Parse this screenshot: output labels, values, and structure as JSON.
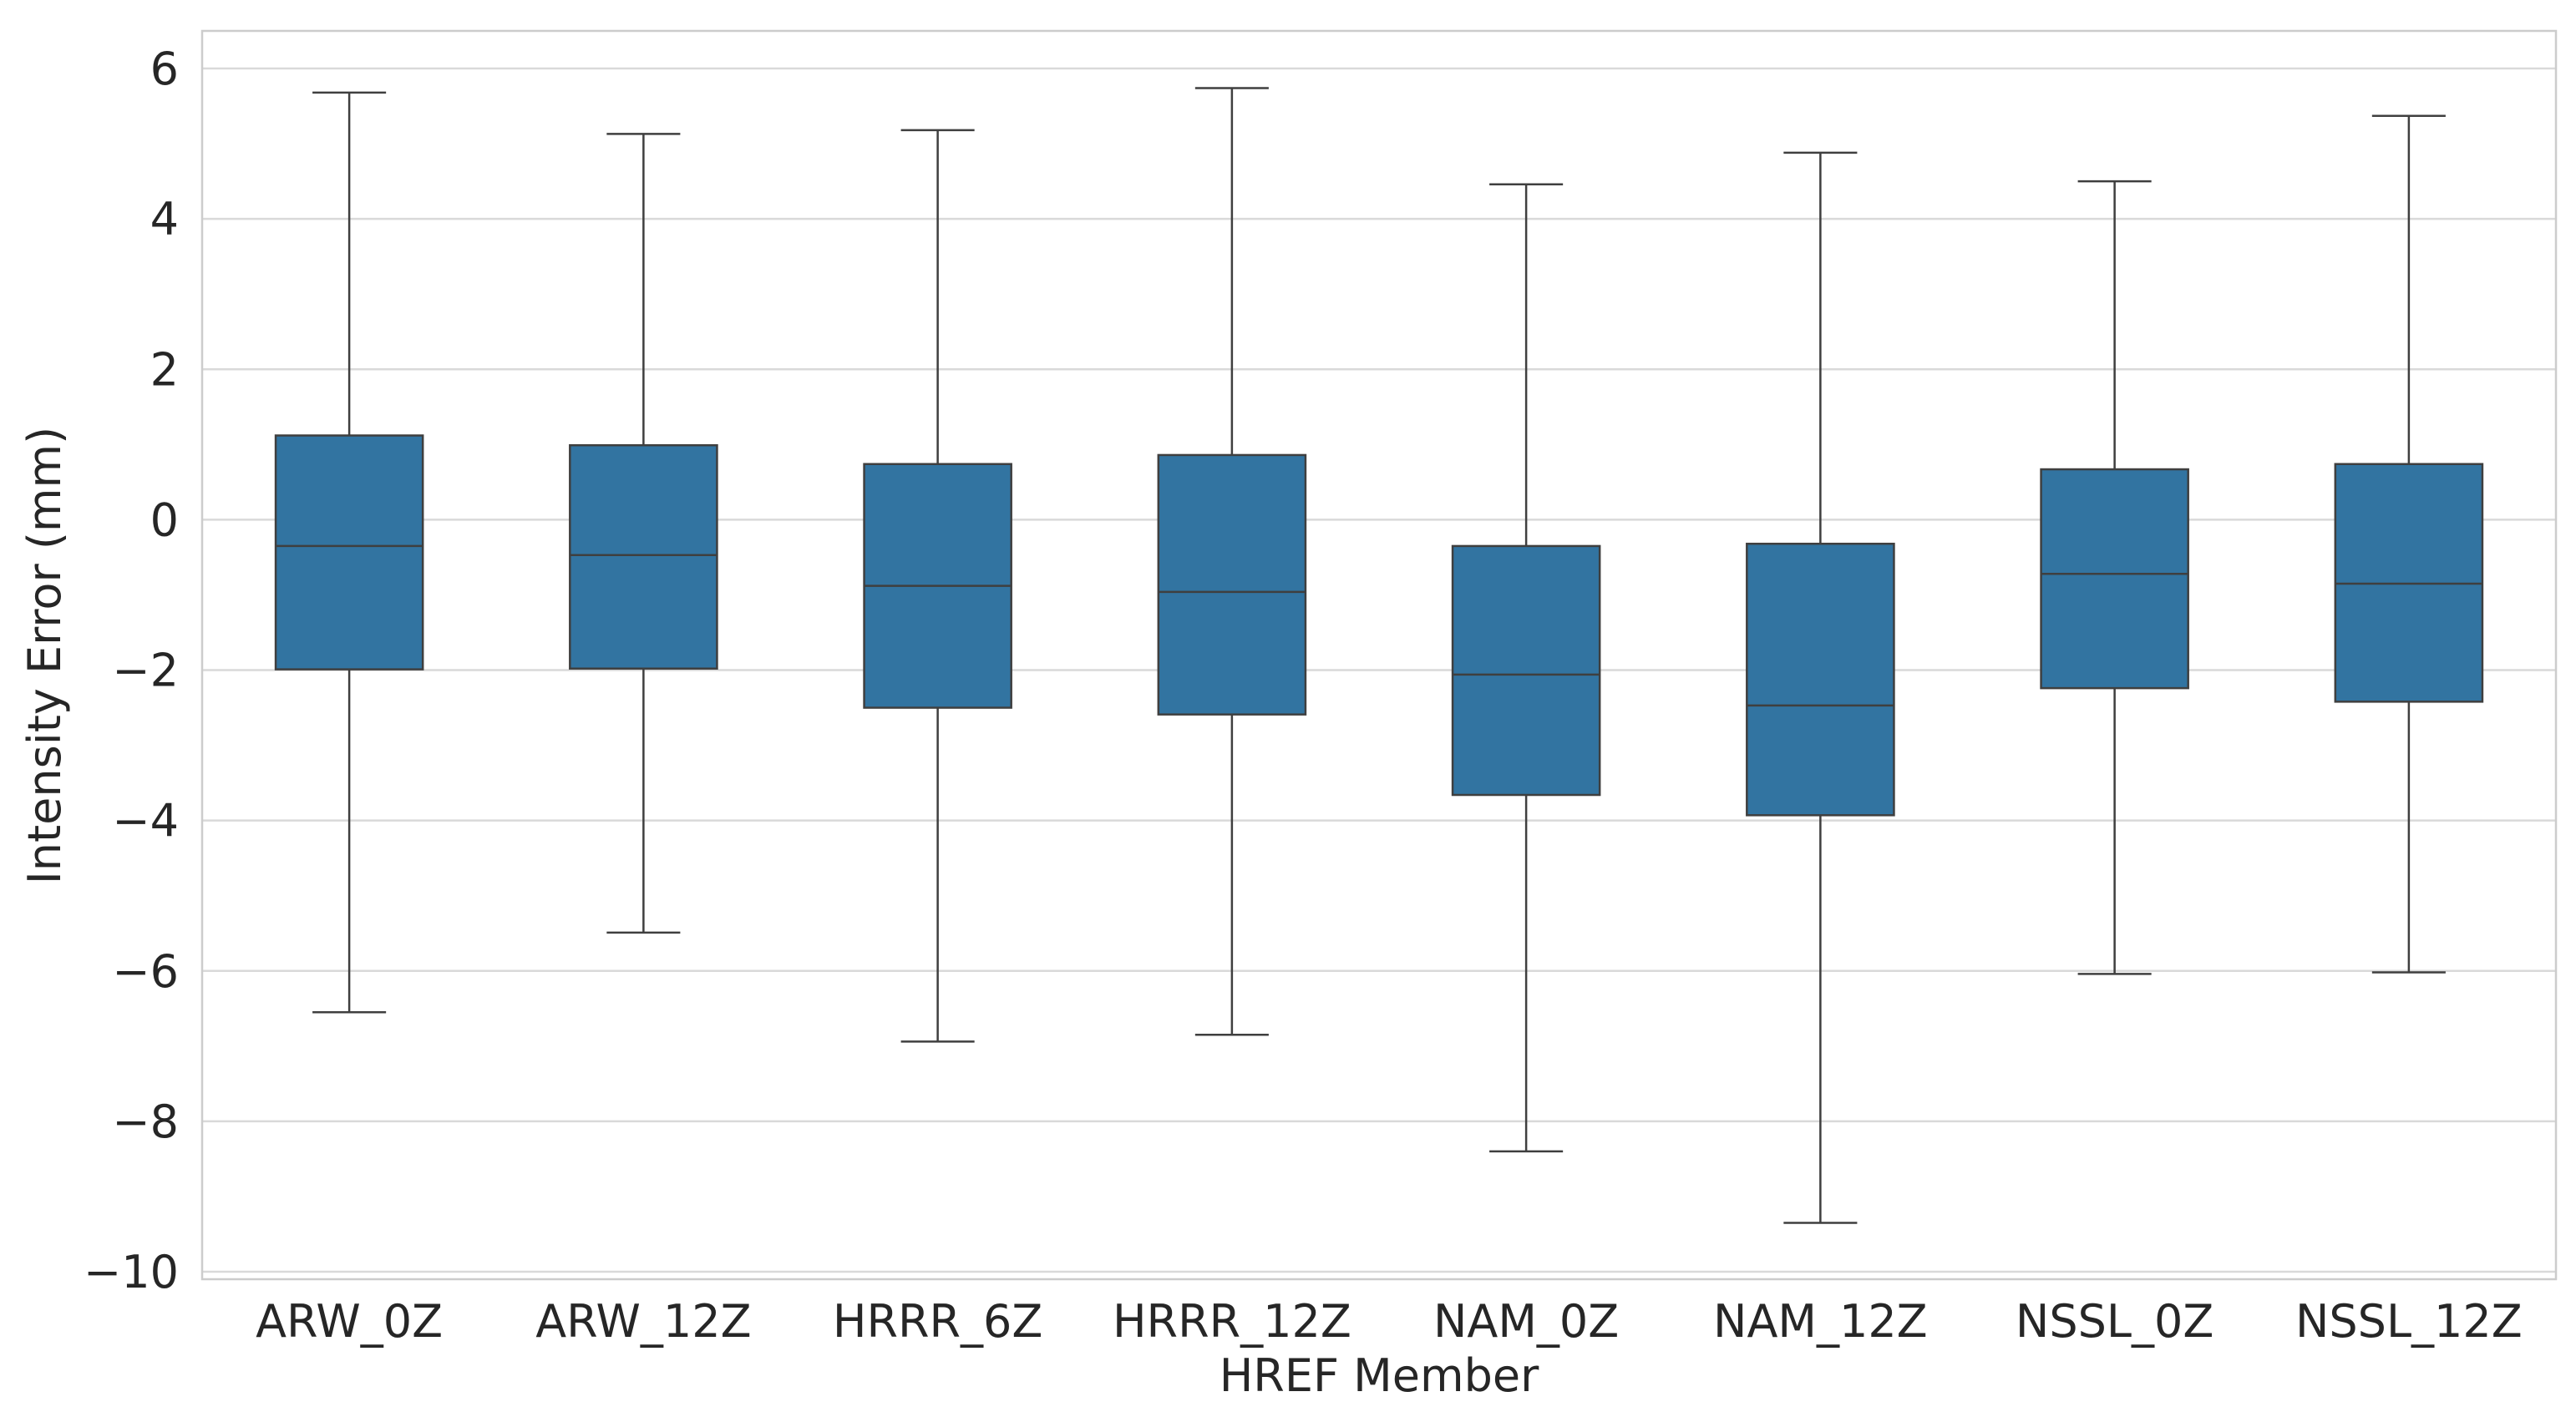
{
  "chart_data": {
    "type": "box",
    "title": "",
    "xlabel": "HREF Member",
    "ylabel": "Intensity Error (mm)",
    "ylim": [
      -10.1,
      6.5
    ],
    "yticks": [
      6,
      4,
      2,
      0,
      -2,
      -4,
      -6,
      -8,
      -10
    ],
    "ytick_labels": [
      "6",
      "4",
      "2",
      "0",
      "−2",
      "−4",
      "−6",
      "−8",
      "−10"
    ],
    "grid": true,
    "box_color": "#3274a1",
    "edge_color": "#3f3f3f",
    "categories": [
      "ARW_0Z",
      "ARW_12Z",
      "HRRR_6Z",
      "HRRR_12Z",
      "NAM_0Z",
      "NAM_12Z",
      "NSSL_0Z",
      "NSSL_12Z"
    ],
    "boxes": [
      {
        "label": "ARW_0Z",
        "whisker_low": -6.55,
        "q1": -1.99,
        "median": -0.35,
        "q3": 1.12,
        "whisker_high": 5.68
      },
      {
        "label": "ARW_12Z",
        "whisker_low": -5.49,
        "q1": -1.98,
        "median": -0.47,
        "q3": 0.99,
        "whisker_high": 5.13
      },
      {
        "label": "HRRR_6Z",
        "whisker_low": -6.94,
        "q1": -2.5,
        "median": -0.88,
        "q3": 0.74,
        "whisker_high": 5.18
      },
      {
        "label": "HRRR_12Z",
        "whisker_low": -6.85,
        "q1": -2.59,
        "median": -0.96,
        "q3": 0.86,
        "whisker_high": 5.74
      },
      {
        "label": "NAM_0Z",
        "whisker_low": -8.4,
        "q1": -3.66,
        "median": -2.06,
        "q3": -0.35,
        "whisker_high": 4.46
      },
      {
        "label": "NAM_12Z",
        "whisker_low": -9.35,
        "q1": -3.93,
        "median": -2.47,
        "q3": -0.32,
        "whisker_high": 4.88
      },
      {
        "label": "NSSL_0Z",
        "whisker_low": -6.04,
        "q1": -2.24,
        "median": -0.72,
        "q3": 0.67,
        "whisker_high": 4.5
      },
      {
        "label": "NSSL_12Z",
        "whisker_low": -6.02,
        "q1": -2.42,
        "median": -0.85,
        "q3": 0.74,
        "whisker_high": 5.37
      }
    ]
  }
}
